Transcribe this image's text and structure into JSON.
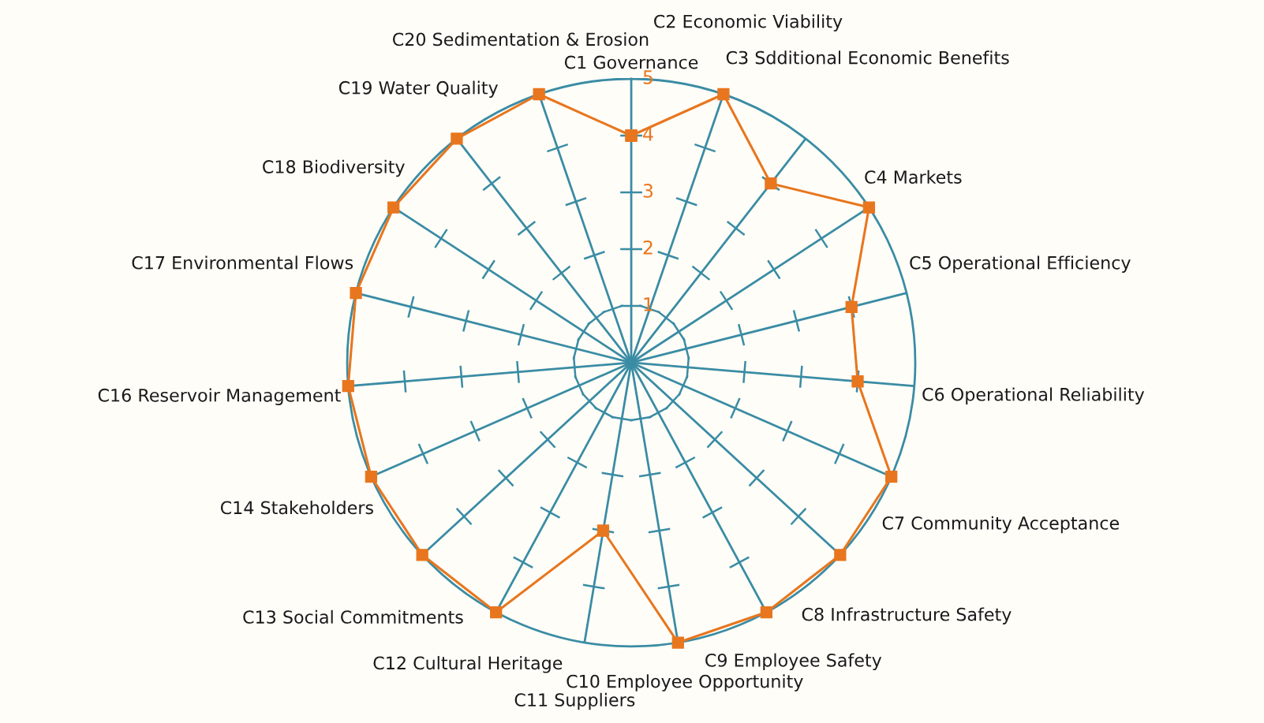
{
  "chart_data": {
    "type": "radar",
    "categories": [
      "C1 Governance",
      "C2 Economic Viability",
      "C3 Sdditional Economic Benefits",
      "C4 Markets",
      "C5 Operational Efficiency",
      "C6 Operational Reliability",
      "C7 Community Acceptance",
      "C8 Infrastructure Safety",
      "C9 Employee Safety",
      "C10 Employee Opportunity",
      "C11 Suppliers",
      "C12 Cultural Heritage",
      "C13 Social Commitments",
      "C14 Stakeholders",
      "C16 Reservoir Management",
      "C17 Environmental Flows",
      "C18 Biodiversity",
      "C19 Water Quality",
      "C20 Sedimentation & Erosion"
    ],
    "series": [
      {
        "color": "#e8761e",
        "values": [
          4,
          5,
          4,
          5,
          4,
          4,
          5,
          5,
          5,
          5,
          3,
          5,
          5,
          5,
          5,
          5,
          5,
          5,
          5
        ]
      }
    ],
    "ylim": [
      0,
      5
    ],
    "yticks": [
      1,
      2,
      3,
      4,
      5
    ],
    "grid": "x",
    "marker": "square",
    "line_style": "solid",
    "legend": false
  }
}
